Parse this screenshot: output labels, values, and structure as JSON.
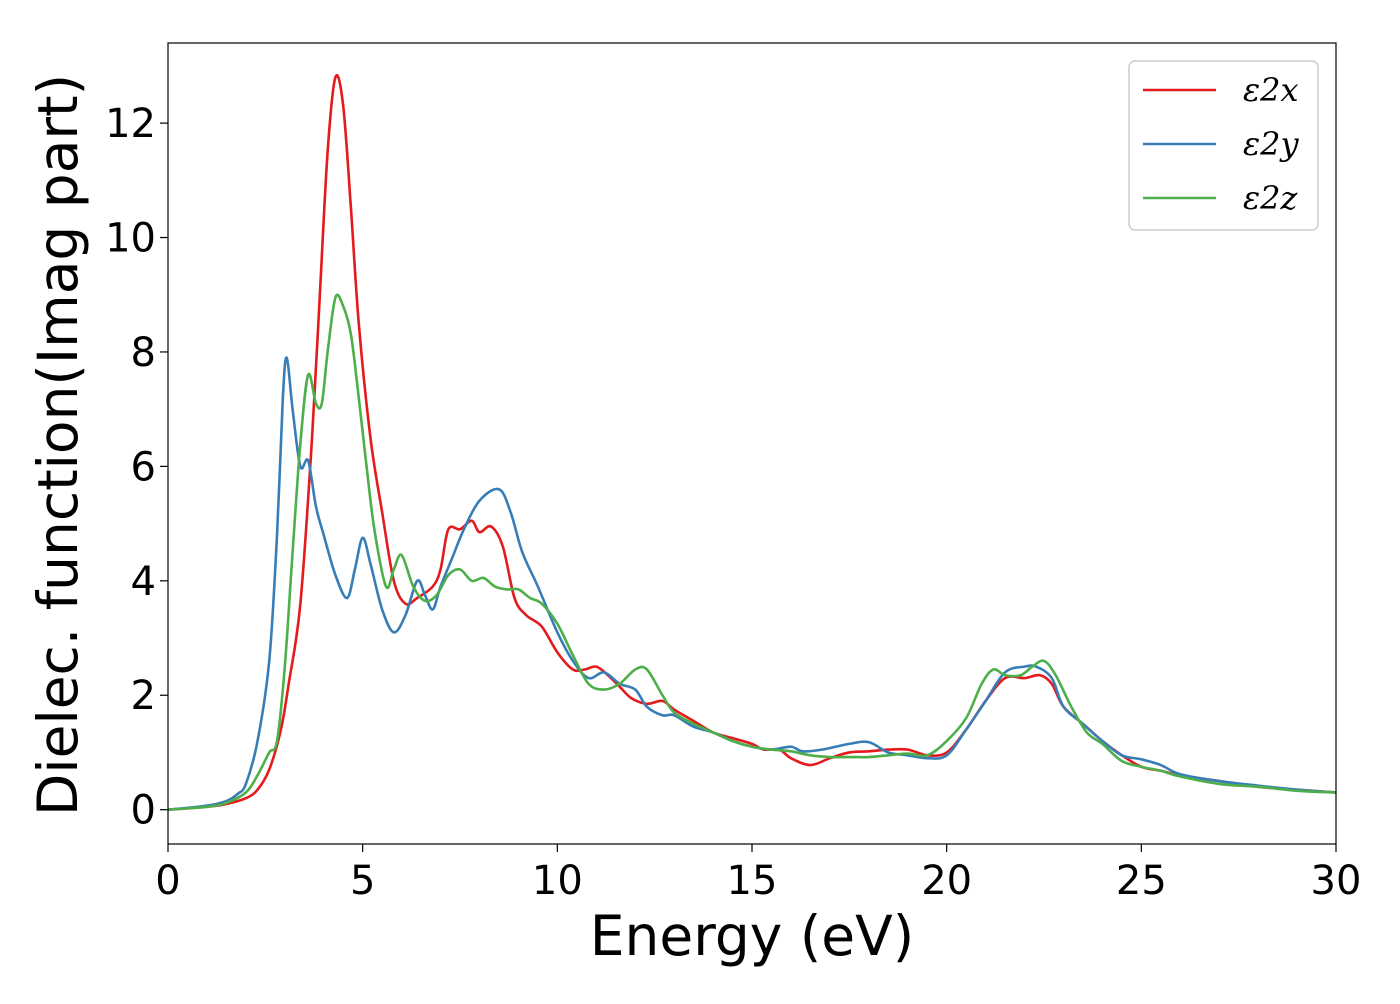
{
  "chart_data": {
    "type": "line",
    "xlabel": "Energy (eV)",
    "ylabel": "Dielec. function(Imag part)",
    "xlim": [
      0,
      30
    ],
    "ylim": [
      -0.6,
      13.4
    ],
    "xticks": [
      0,
      5,
      10,
      15,
      20,
      25,
      30
    ],
    "yticks": [
      0,
      2,
      4,
      6,
      8,
      10,
      12
    ],
    "grid": false,
    "legend_position": "top-right",
    "series": [
      {
        "name": "ε2x",
        "color": "#e41a1c",
        "points": [
          [
            0,
            0
          ],
          [
            1,
            0.05
          ],
          [
            1.5,
            0.1
          ],
          [
            2,
            0.2
          ],
          [
            2.3,
            0.35
          ],
          [
            2.6,
            0.7
          ],
          [
            2.9,
            1.4
          ],
          [
            3.1,
            2.2
          ],
          [
            3.4,
            3.6
          ],
          [
            3.7,
            6.5
          ],
          [
            3.9,
            9
          ],
          [
            4.1,
            11.5
          ],
          [
            4.3,
            12.8
          ],
          [
            4.5,
            12.3
          ],
          [
            4.7,
            10.5
          ],
          [
            4.9,
            8.5
          ],
          [
            5.2,
            6.5
          ],
          [
            5.5,
            5.2
          ],
          [
            5.8,
            4
          ],
          [
            6.1,
            3.6
          ],
          [
            6.4,
            3.7
          ],
          [
            6.8,
            3.9
          ],
          [
            7.0,
            4.2
          ],
          [
            7.2,
            4.9
          ],
          [
            7.5,
            4.9
          ],
          [
            7.8,
            5.05
          ],
          [
            8.0,
            4.85
          ],
          [
            8.3,
            4.95
          ],
          [
            8.6,
            4.6
          ],
          [
            8.9,
            3.7
          ],
          [
            9.2,
            3.4
          ],
          [
            9.6,
            3.2
          ],
          [
            10.0,
            2.75
          ],
          [
            10.4,
            2.45
          ],
          [
            10.7,
            2.45
          ],
          [
            11.0,
            2.5
          ],
          [
            11.3,
            2.35
          ],
          [
            11.6,
            2.15
          ],
          [
            11.9,
            1.95
          ],
          [
            12.3,
            1.85
          ],
          [
            12.7,
            1.9
          ],
          [
            13.0,
            1.75
          ],
          [
            13.5,
            1.55
          ],
          [
            14.0,
            1.35
          ],
          [
            14.5,
            1.25
          ],
          [
            15.0,
            1.15
          ],
          [
            15.3,
            1.05
          ],
          [
            15.7,
            1.05
          ],
          [
            16.0,
            0.9
          ],
          [
            16.5,
            0.78
          ],
          [
            17.0,
            0.9
          ],
          [
            17.5,
            1.0
          ],
          [
            18.0,
            1.02
          ],
          [
            18.5,
            1.05
          ],
          [
            19.0,
            1.05
          ],
          [
            19.5,
            0.95
          ],
          [
            20.0,
            1.0
          ],
          [
            20.5,
            1.4
          ],
          [
            21.0,
            1.9
          ],
          [
            21.5,
            2.3
          ],
          [
            22.0,
            2.3
          ],
          [
            22.4,
            2.35
          ],
          [
            22.7,
            2.2
          ],
          [
            23.0,
            1.8
          ],
          [
            23.5,
            1.5
          ],
          [
            24.0,
            1.2
          ],
          [
            24.5,
            0.95
          ],
          [
            25.0,
            0.75
          ],
          [
            25.5,
            0.68
          ],
          [
            26.0,
            0.6
          ],
          [
            27.0,
            0.5
          ],
          [
            28.0,
            0.4
          ],
          [
            29.0,
            0.35
          ],
          [
            30.0,
            0.3
          ]
        ]
      },
      {
        "name": "ε2y",
        "color": "#377eb8",
        "points": [
          [
            0,
            0
          ],
          [
            1,
            0.07
          ],
          [
            1.5,
            0.15
          ],
          [
            1.8,
            0.28
          ],
          [
            2.0,
            0.45
          ],
          [
            2.3,
            1.2
          ],
          [
            2.6,
            2.6
          ],
          [
            2.8,
            4.8
          ],
          [
            2.95,
            7.2
          ],
          [
            3.05,
            7.9
          ],
          [
            3.2,
            7.0
          ],
          [
            3.4,
            6.0
          ],
          [
            3.6,
            6.1
          ],
          [
            3.8,
            5.3
          ],
          [
            4.0,
            4.8
          ],
          [
            4.3,
            4.1
          ],
          [
            4.6,
            3.7
          ],
          [
            4.8,
            4.2
          ],
          [
            5.0,
            4.75
          ],
          [
            5.2,
            4.3
          ],
          [
            5.5,
            3.5
          ],
          [
            5.8,
            3.1
          ],
          [
            6.1,
            3.4
          ],
          [
            6.4,
            4.0
          ],
          [
            6.6,
            3.75
          ],
          [
            6.8,
            3.5
          ],
          [
            7.0,
            3.9
          ],
          [
            7.3,
            4.4
          ],
          [
            7.6,
            4.9
          ],
          [
            8.0,
            5.4
          ],
          [
            8.5,
            5.6
          ],
          [
            8.8,
            5.2
          ],
          [
            9.1,
            4.5
          ],
          [
            9.5,
            3.9
          ],
          [
            10.0,
            3.1
          ],
          [
            10.4,
            2.6
          ],
          [
            10.8,
            2.3
          ],
          [
            11.2,
            2.4
          ],
          [
            11.6,
            2.2
          ],
          [
            12.0,
            2.1
          ],
          [
            12.3,
            1.8
          ],
          [
            12.7,
            1.65
          ],
          [
            13.0,
            1.65
          ],
          [
            13.5,
            1.45
          ],
          [
            14.0,
            1.35
          ],
          [
            14.5,
            1.2
          ],
          [
            15.0,
            1.1
          ],
          [
            15.5,
            1.05
          ],
          [
            16.0,
            1.1
          ],
          [
            16.3,
            1.02
          ],
          [
            16.8,
            1.05
          ],
          [
            17.5,
            1.15
          ],
          [
            18.0,
            1.18
          ],
          [
            18.5,
            1.0
          ],
          [
            19.0,
            0.95
          ],
          [
            19.5,
            0.9
          ],
          [
            20.0,
            0.95
          ],
          [
            20.5,
            1.4
          ],
          [
            21.0,
            1.9
          ],
          [
            21.5,
            2.4
          ],
          [
            22.0,
            2.5
          ],
          [
            22.3,
            2.5
          ],
          [
            22.7,
            2.3
          ],
          [
            23.0,
            1.8
          ],
          [
            23.5,
            1.5
          ],
          [
            24.0,
            1.2
          ],
          [
            24.5,
            0.95
          ],
          [
            25.0,
            0.88
          ],
          [
            25.5,
            0.78
          ],
          [
            26.0,
            0.62
          ],
          [
            27.0,
            0.5
          ],
          [
            28.0,
            0.42
          ],
          [
            29.0,
            0.35
          ],
          [
            30.0,
            0.3
          ]
        ]
      },
      {
        "name": "ε2z",
        "color": "#4daf4a",
        "points": [
          [
            0,
            0
          ],
          [
            1,
            0.05
          ],
          [
            1.5,
            0.12
          ],
          [
            2.0,
            0.3
          ],
          [
            2.3,
            0.6
          ],
          [
            2.6,
            1.0
          ],
          [
            2.8,
            1.2
          ],
          [
            3.0,
            2.5
          ],
          [
            3.2,
            4.5
          ],
          [
            3.4,
            6.4
          ],
          [
            3.6,
            7.6
          ],
          [
            3.8,
            7.1
          ],
          [
            3.95,
            7.1
          ],
          [
            4.1,
            8.0
          ],
          [
            4.3,
            8.95
          ],
          [
            4.5,
            8.8
          ],
          [
            4.7,
            8.3
          ],
          [
            4.9,
            7.2
          ],
          [
            5.1,
            6.0
          ],
          [
            5.3,
            4.9
          ],
          [
            5.6,
            3.9
          ],
          [
            5.8,
            4.2
          ],
          [
            6.0,
            4.45
          ],
          [
            6.3,
            3.9
          ],
          [
            6.6,
            3.65
          ],
          [
            6.9,
            3.75
          ],
          [
            7.2,
            4.1
          ],
          [
            7.5,
            4.2
          ],
          [
            7.8,
            4.0
          ],
          [
            8.1,
            4.05
          ],
          [
            8.4,
            3.9
          ],
          [
            8.7,
            3.85
          ],
          [
            9.0,
            3.85
          ],
          [
            9.3,
            3.7
          ],
          [
            9.6,
            3.6
          ],
          [
            10.0,
            3.25
          ],
          [
            10.4,
            2.7
          ],
          [
            10.8,
            2.2
          ],
          [
            11.2,
            2.1
          ],
          [
            11.6,
            2.2
          ],
          [
            12.0,
            2.45
          ],
          [
            12.3,
            2.45
          ],
          [
            12.7,
            2.0
          ],
          [
            13.0,
            1.7
          ],
          [
            13.5,
            1.5
          ],
          [
            14.0,
            1.35
          ],
          [
            14.5,
            1.2
          ],
          [
            15.0,
            1.1
          ],
          [
            15.5,
            1.05
          ],
          [
            16.0,
            1.02
          ],
          [
            16.5,
            0.95
          ],
          [
            17.0,
            0.92
          ],
          [
            17.5,
            0.92
          ],
          [
            18.0,
            0.92
          ],
          [
            18.5,
            0.95
          ],
          [
            19.0,
            0.98
          ],
          [
            19.5,
            0.95
          ],
          [
            20.0,
            1.2
          ],
          [
            20.5,
            1.6
          ],
          [
            20.9,
            2.2
          ],
          [
            21.2,
            2.45
          ],
          [
            21.5,
            2.35
          ],
          [
            21.9,
            2.35
          ],
          [
            22.2,
            2.5
          ],
          [
            22.5,
            2.6
          ],
          [
            22.8,
            2.35
          ],
          [
            23.2,
            1.8
          ],
          [
            23.6,
            1.35
          ],
          [
            24.0,
            1.15
          ],
          [
            24.5,
            0.85
          ],
          [
            25.0,
            0.75
          ],
          [
            25.5,
            0.68
          ],
          [
            26.0,
            0.58
          ],
          [
            27.0,
            0.45
          ],
          [
            28.0,
            0.4
          ],
          [
            29.0,
            0.33
          ],
          [
            30.0,
            0.3
          ]
        ]
      }
    ]
  }
}
